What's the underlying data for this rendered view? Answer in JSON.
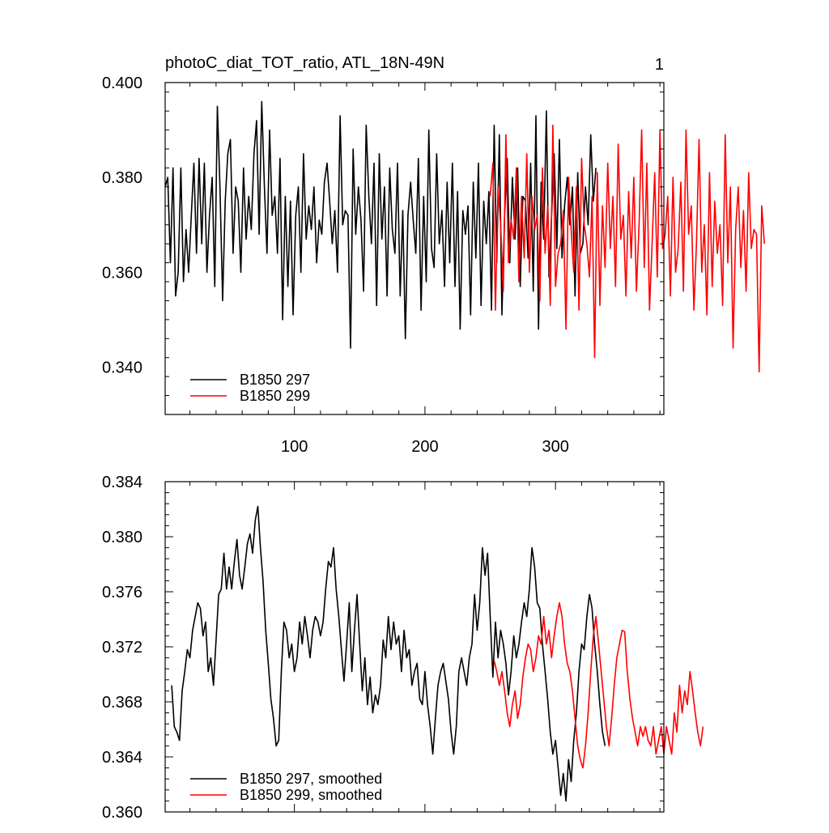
{
  "figure": {
    "title": "photoC_diat_TOT_ratio, ATL_18N-49N",
    "panel_number": "1"
  },
  "colors": {
    "series_297": "#000000",
    "series_299": "#ff0000"
  },
  "chart_data": [
    {
      "type": "line",
      "title": "photoC_diat_TOT_ratio, ATL_18N-49N",
      "xlabel": "",
      "ylabel": "",
      "xlim": [
        1,
        383
      ],
      "ylim": [
        0.33,
        0.4
      ],
      "x_ticks": [
        100,
        200,
        300
      ],
      "x_tick_labels": [
        "100",
        "200",
        "300"
      ],
      "y_ticks": [
        0.34,
        0.36,
        0.38,
        0.4
      ],
      "y_tick_labels": [
        "0.340",
        "0.360",
        "0.380",
        "0.400"
      ],
      "legend_position": "bottom-left",
      "grid": false,
      "series": [
        {
          "name": "B1850 297",
          "color": "#000000",
          "x_start": 1,
          "x_step": 2,
          "values": [
            0.378,
            0.38,
            0.362,
            0.382,
            0.355,
            0.36,
            0.382,
            0.358,
            0.369,
            0.36,
            0.372,
            0.383,
            0.364,
            0.384,
            0.366,
            0.383,
            0.36,
            0.372,
            0.38,
            0.357,
            0.395,
            0.378,
            0.354,
            0.375,
            0.385,
            0.388,
            0.364,
            0.378,
            0.375,
            0.36,
            0.382,
            0.367,
            0.376,
            0.369,
            0.385,
            0.392,
            0.368,
            0.396,
            0.378,
            0.364,
            0.39,
            0.372,
            0.376,
            0.364,
            0.384,
            0.35,
            0.376,
            0.357,
            0.375,
            0.351,
            0.372,
            0.378,
            0.36,
            0.385,
            0.367,
            0.374,
            0.369,
            0.378,
            0.362,
            0.371,
            0.368,
            0.379,
            0.383,
            0.375,
            0.366,
            0.373,
            0.36,
            0.393,
            0.37,
            0.373,
            0.372,
            0.344,
            0.386,
            0.368,
            0.378,
            0.371,
            0.356,
            0.391,
            0.376,
            0.366,
            0.383,
            0.353,
            0.385,
            0.367,
            0.378,
            0.355,
            0.382,
            0.369,
            0.364,
            0.383,
            0.355,
            0.373,
            0.346,
            0.372,
            0.379,
            0.371,
            0.364,
            0.384,
            0.352,
            0.376,
            0.358,
            0.39,
            0.365,
            0.361,
            0.385,
            0.366,
            0.373,
            0.357,
            0.379,
            0.362,
            0.383,
            0.357,
            0.377,
            0.348,
            0.373,
            0.368,
            0.374,
            0.351,
            0.379,
            0.363,
            0.383,
            0.353,
            0.375,
            0.366,
            0.377,
            0.352,
            0.391,
            0.362,
            0.389,
            0.351,
            0.372,
            0.384,
            0.362,
            0.38,
            0.367,
            0.382,
            0.357,
            0.376,
            0.375,
            0.363,
            0.383,
            0.356,
            0.393,
            0.348,
            0.379,
            0.367,
            0.394,
            0.359,
            0.372,
            0.385,
            0.365,
            0.388,
            0.363,
            0.374,
            0.38,
            0.37,
            0.378,
            0.355,
            0.381,
            0.364,
            0.366,
            0.378,
            0.37,
            0.389,
            0.375,
            0.382
          ]
        },
        {
          "name": "B1850 299",
          "color": "#ff0000",
          "x_start": 250,
          "x_step": 2,
          "values": [
            0.376,
            0.383,
            0.352,
            0.378,
            0.37,
            0.356,
            0.389,
            0.362,
            0.371,
            0.367,
            0.382,
            0.358,
            0.376,
            0.363,
            0.385,
            0.36,
            0.376,
            0.369,
            0.372,
            0.354,
            0.382,
            0.364,
            0.374,
            0.353,
            0.391,
            0.357,
            0.364,
            0.366,
            0.373,
            0.348,
            0.38,
            0.369,
            0.36,
            0.378,
            0.352,
            0.384,
            0.37,
            0.366,
            0.359,
            0.376,
            0.342,
            0.381,
            0.353,
            0.374,
            0.361,
            0.383,
            0.365,
            0.376,
            0.357,
            0.387,
            0.367,
            0.372,
            0.355,
            0.377,
            0.363,
            0.38,
            0.356,
            0.37,
            0.39,
            0.361,
            0.383,
            0.352,
            0.366,
            0.381,
            0.359,
            0.39,
            0.365,
            0.368,
            0.376,
            0.355,
            0.38,
            0.36,
            0.365,
            0.379,
            0.356,
            0.39,
            0.368,
            0.374,
            0.352,
            0.366,
            0.388,
            0.36,
            0.37,
            0.351,
            0.381,
            0.357,
            0.375,
            0.364,
            0.37,
            0.353,
            0.389,
            0.362,
            0.378,
            0.344,
            0.369,
            0.378,
            0.361,
            0.373,
            0.356,
            0.381,
            0.365,
            0.369,
            0.368,
            0.339,
            0.374,
            0.366
          ]
        }
      ]
    },
    {
      "type": "line",
      "title": "",
      "xlabel": "",
      "ylabel": "",
      "xlim": [
        1,
        383
      ],
      "ylim": [
        0.36,
        0.384
      ],
      "x_ticks": [
        100,
        200,
        300
      ],
      "x_tick_labels": [],
      "y_ticks": [
        0.36,
        0.364,
        0.368,
        0.372,
        0.376,
        0.38,
        0.384
      ],
      "y_tick_labels": [
        "0.360",
        "0.364",
        "0.368",
        "0.372",
        "0.376",
        "0.380",
        "0.384"
      ],
      "legend_position": "bottom-left",
      "grid": false,
      "series": [
        {
          "name": "B1850 297, smoothed",
          "color": "#000000",
          "x_start": 6,
          "x_step": 2,
          "values": [
            0.3692,
            0.3662,
            0.3658,
            0.3652,
            0.3688,
            0.3702,
            0.3718,
            0.3712,
            0.3732,
            0.3742,
            0.3752,
            0.3748,
            0.3728,
            0.3738,
            0.3702,
            0.3712,
            0.3692,
            0.3725,
            0.3758,
            0.3762,
            0.3788,
            0.3762,
            0.3778,
            0.3762,
            0.3782,
            0.3798,
            0.3772,
            0.3762,
            0.3778,
            0.3795,
            0.3802,
            0.3788,
            0.3812,
            0.3822,
            0.3792,
            0.3768,
            0.3732,
            0.3708,
            0.3682,
            0.3668,
            0.3648,
            0.3652,
            0.3702,
            0.3738,
            0.3732,
            0.3712,
            0.3722,
            0.3702,
            0.3712,
            0.3738,
            0.3722,
            0.3742,
            0.3728,
            0.3712,
            0.3732,
            0.3742,
            0.3738,
            0.3728,
            0.3738,
            0.3762,
            0.3782,
            0.3778,
            0.3792,
            0.3762,
            0.3742,
            0.3718,
            0.3695,
            0.3722,
            0.3752,
            0.3702,
            0.3732,
            0.3758,
            0.3722,
            0.3688,
            0.3712,
            0.3678,
            0.3698,
            0.3672,
            0.3685,
            0.3678,
            0.3692,
            0.3725,
            0.3712,
            0.3742,
            0.3718,
            0.3738,
            0.3722,
            0.3728,
            0.3702,
            0.3732,
            0.3712,
            0.3718,
            0.3692,
            0.3702,
            0.3708,
            0.3682,
            0.3678,
            0.3702,
            0.3678,
            0.3662,
            0.3642,
            0.3668,
            0.3692,
            0.3702,
            0.3708,
            0.3695,
            0.3682,
            0.3658,
            0.3642,
            0.3662,
            0.3702,
            0.3712,
            0.3702,
            0.3692,
            0.3712,
            0.3722,
            0.3758,
            0.3732,
            0.3752,
            0.3792,
            0.3772,
            0.3788,
            0.3742,
            0.3698,
            0.3738,
            0.3712,
            0.3732,
            0.3722,
            0.3708,
            0.3685,
            0.3702,
            0.3728,
            0.3712,
            0.3722,
            0.3738,
            0.3752,
            0.3742,
            0.3762,
            0.3792,
            0.3778,
            0.3752,
            0.3748,
            0.3722,
            0.3702,
            0.3682,
            0.3658,
            0.3642,
            0.3652,
            0.3632,
            0.3612,
            0.3628,
            0.3608,
            0.3638,
            0.3622,
            0.3652,
            0.3672,
            0.3702,
            0.3722,
            0.3718,
            0.3742,
            0.3758,
            0.3748,
            0.3722,
            0.3702,
            0.3678,
            0.3658,
            0.3648
          ]
        },
        {
          "name": "B1850 299, smoothed",
          "color": "#ff0000",
          "x_start": 253,
          "x_step": 2,
          "values": [
            0.371,
            0.3702,
            0.3692,
            0.3702,
            0.3688,
            0.3672,
            0.3662,
            0.3678,
            0.3688,
            0.3668,
            0.3678,
            0.3698,
            0.3712,
            0.3722,
            0.3718,
            0.3702,
            0.3712,
            0.3728,
            0.3722,
            0.3742,
            0.3722,
            0.3732,
            0.3712,
            0.3728,
            0.3742,
            0.3752,
            0.3742,
            0.3722,
            0.3708,
            0.3702,
            0.3688,
            0.3668,
            0.3648,
            0.3638,
            0.3632,
            0.3648,
            0.3672,
            0.3702,
            0.3728,
            0.3742,
            0.3722,
            0.3702,
            0.3682,
            0.3662,
            0.3648,
            0.3668,
            0.3692,
            0.3712,
            0.3722,
            0.3732,
            0.3731,
            0.3702,
            0.3682,
            0.3668,
            0.3658,
            0.3648,
            0.3662,
            0.3655,
            0.3662,
            0.3652,
            0.3648,
            0.3662,
            0.3642,
            0.3652,
            0.3662,
            0.3642,
            0.3662,
            0.3652,
            0.3642,
            0.3672,
            0.3658,
            0.3692,
            0.3672,
            0.3688,
            0.3678,
            0.3702,
            0.3688,
            0.3672,
            0.3658,
            0.3648,
            0.3662
          ]
        }
      ]
    }
  ]
}
